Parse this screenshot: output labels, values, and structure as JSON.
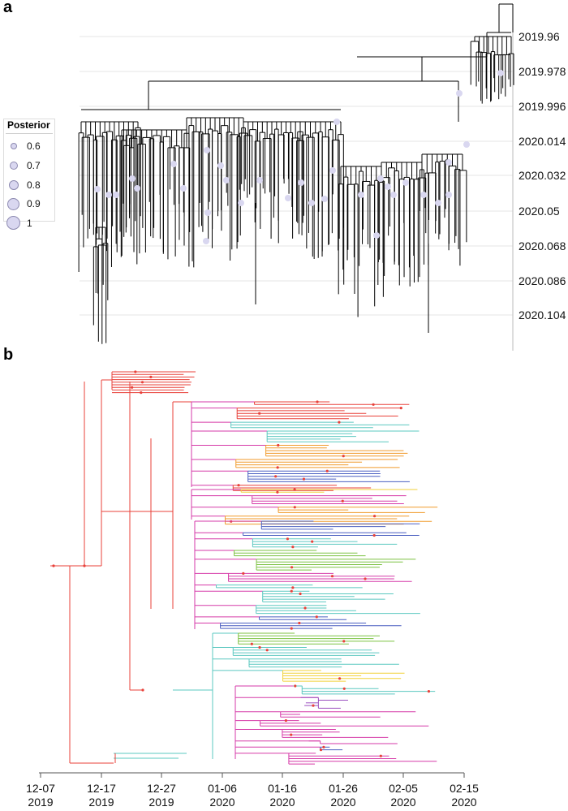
{
  "panel_a": {
    "label": "a",
    "y_ticks": [
      "2019.96",
      "2019.978",
      "2019.996",
      "2020.014",
      "2020.032",
      "2020.05",
      "2020.068",
      "2020.086",
      "2020.104"
    ],
    "legend": {
      "title": "Posterior",
      "items": [
        {
          "label": "0.6",
          "value": 0.6
        },
        {
          "label": "0.7",
          "value": 0.7
        },
        {
          "label": "0.8",
          "value": 0.8
        },
        {
          "label": "0.9",
          "value": 0.9
        },
        {
          "label": "1",
          "value": 1.0
        }
      ]
    },
    "colors": {
      "branch": "#000000",
      "node": "#d9d7f0",
      "grid": "#e6e6e6"
    }
  },
  "panel_b": {
    "label": "b",
    "x_ticks": [
      {
        "line1": "12-07",
        "line2": "2019"
      },
      {
        "line1": "12-17",
        "line2": "2019"
      },
      {
        "line1": "12-27",
        "line2": "2019"
      },
      {
        "line1": "01-06",
        "line2": "2020"
      },
      {
        "line1": "01-16",
        "line2": "2020"
      },
      {
        "line1": "01-26",
        "line2": "2020"
      },
      {
        "line1": "02-05",
        "line2": "2020"
      },
      {
        "line1": "02-15",
        "line2": "2020"
      }
    ],
    "colors": {
      "root": "#e8413a",
      "clades": [
        "#d63aa8",
        "#e8413a",
        "#f09a2a",
        "#f2d23a",
        "#7cc242",
        "#5bc8c0",
        "#4a5fc1",
        "#9b4fbf"
      ]
    }
  }
}
